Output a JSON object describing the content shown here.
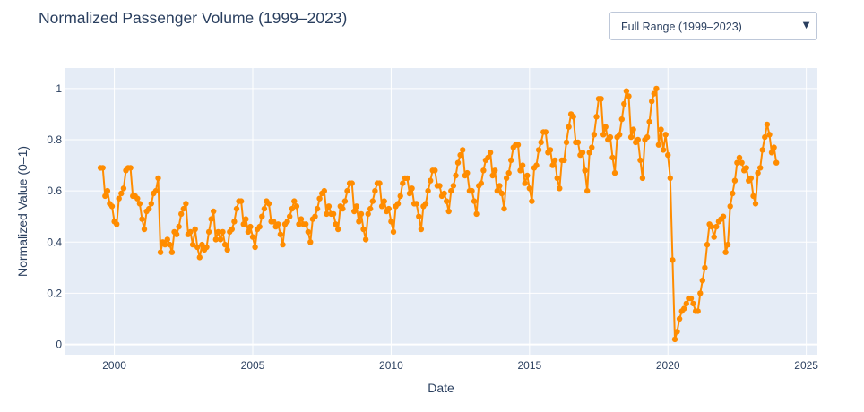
{
  "header": {
    "title": "Normalized Passenger Volume (1999–2023)"
  },
  "range_selector": {
    "selected": "Full Range (1999–2023)",
    "arrow": "▼"
  },
  "colors": {
    "plot_bg": "#e5ecf6",
    "grid": "#ffffff",
    "series": "#ff8c00",
    "text": "#2a3f5f"
  },
  "chart_data": {
    "type": "line",
    "title": "Normalized Passenger Volume (1999–2023)",
    "xlabel": "Date",
    "ylabel": "Normalized Value (0–1)",
    "xlim": [
      1998.2,
      2025.4
    ],
    "ylim": [
      -0.04,
      1.08
    ],
    "x_ticks": [
      2000,
      2005,
      2010,
      2015,
      2020,
      2025
    ],
    "y_ticks": [
      0,
      0.2,
      0.4,
      0.6,
      0.8,
      1
    ],
    "y_tick_labels": [
      "0",
      "0.2",
      "0.4",
      "0.6",
      "0.8",
      "1"
    ],
    "grid": true,
    "legend": "none",
    "start": "1999-07",
    "frequency": "monthly",
    "series": [
      {
        "markers": true,
        "values": [
          0.69,
          0.69,
          0.58,
          0.6,
          0.55,
          0.54,
          0.48,
          0.47,
          0.57,
          0.59,
          0.61,
          0.68,
          0.69,
          0.69,
          0.58,
          0.58,
          0.57,
          0.55,
          0.49,
          0.45,
          0.52,
          0.53,
          0.55,
          0.59,
          0.6,
          0.65,
          0.36,
          0.4,
          0.39,
          0.41,
          0.39,
          0.36,
          0.44,
          0.43,
          0.46,
          0.51,
          0.53,
          0.55,
          0.43,
          0.44,
          0.39,
          0.45,
          0.38,
          0.34,
          0.39,
          0.37,
          0.38,
          0.44,
          0.49,
          0.52,
          0.41,
          0.44,
          0.41,
          0.44,
          0.39,
          0.37,
          0.44,
          0.45,
          0.48,
          0.53,
          0.56,
          0.56,
          0.47,
          0.49,
          0.44,
          0.46,
          0.42,
          0.38,
          0.45,
          0.46,
          0.5,
          0.53,
          0.56,
          0.55,
          0.48,
          0.48,
          0.46,
          0.47,
          0.43,
          0.39,
          0.47,
          0.48,
          0.5,
          0.53,
          0.56,
          0.54,
          0.47,
          0.49,
          0.47,
          0.47,
          0.44,
          0.4,
          0.49,
          0.5,
          0.53,
          0.57,
          0.59,
          0.6,
          0.51,
          0.54,
          0.51,
          0.51,
          0.47,
          0.45,
          0.54,
          0.53,
          0.56,
          0.6,
          0.63,
          0.63,
          0.52,
          0.54,
          0.48,
          0.51,
          0.45,
          0.41,
          0.51,
          0.53,
          0.56,
          0.6,
          0.63,
          0.63,
          0.54,
          0.56,
          0.52,
          0.53,
          0.48,
          0.44,
          0.54,
          0.55,
          0.58,
          0.63,
          0.65,
          0.65,
          0.59,
          0.61,
          0.55,
          0.55,
          0.5,
          0.45,
          0.54,
          0.55,
          0.6,
          0.64,
          0.68,
          0.68,
          0.62,
          0.62,
          0.58,
          0.59,
          0.56,
          0.52,
          0.6,
          0.62,
          0.66,
          0.71,
          0.74,
          0.76,
          0.66,
          0.67,
          0.6,
          0.6,
          0.56,
          0.51,
          0.62,
          0.63,
          0.68,
          0.72,
          0.73,
          0.75,
          0.66,
          0.68,
          0.6,
          0.62,
          0.59,
          0.53,
          0.65,
          0.67,
          0.72,
          0.77,
          0.78,
          0.78,
          0.68,
          0.7,
          0.63,
          0.66,
          0.61,
          0.56,
          0.69,
          0.7,
          0.76,
          0.79,
          0.83,
          0.83,
          0.75,
          0.76,
          0.7,
          0.72,
          0.65,
          0.61,
          0.72,
          0.72,
          0.79,
          0.85,
          0.9,
          0.89,
          0.79,
          0.79,
          0.74,
          0.75,
          0.68,
          0.6,
          0.75,
          0.77,
          0.82,
          0.89,
          0.96,
          0.96,
          0.82,
          0.85,
          0.8,
          0.81,
          0.73,
          0.67,
          0.81,
          0.82,
          0.88,
          0.94,
          0.99,
          0.97,
          0.81,
          0.84,
          0.79,
          0.8,
          0.72,
          0.65,
          0.8,
          0.81,
          0.87,
          0.95,
          0.98,
          1.0,
          0.78,
          0.84,
          0.76,
          0.82,
          0.74,
          0.65,
          0.33,
          0.02,
          0.05,
          0.1,
          0.13,
          0.14,
          0.16,
          0.18,
          0.18,
          0.16,
          0.13,
          0.13,
          0.2,
          0.25,
          0.3,
          0.39,
          0.47,
          0.46,
          0.42,
          0.46,
          0.48,
          0.49,
          0.5,
          0.36,
          0.39,
          0.54,
          0.59,
          0.64,
          0.71,
          0.73,
          0.71,
          0.68,
          0.69,
          0.64,
          0.65,
          0.58,
          0.55,
          0.67,
          0.69,
          0.76,
          0.81,
          0.86,
          0.82,
          0.75,
          0.77,
          0.71
        ]
      }
    ]
  }
}
